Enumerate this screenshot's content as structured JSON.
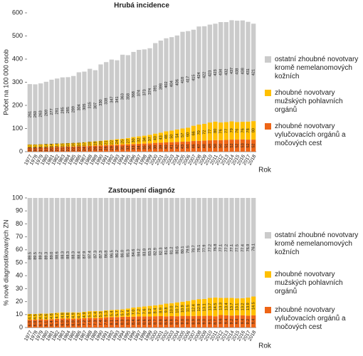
{
  "chart_data": [
    {
      "type": "bar",
      "stacked": true,
      "title": "Hrubá incidence",
      "y_label": "Počet na 100 000 osob",
      "x_label": "Rok",
      "ylim": [
        0,
        600
      ],
      "yticks": [
        0,
        100,
        200,
        300,
        400,
        500,
        600
      ],
      "categories": [
        "1977",
        "1978",
        "1979",
        "1980",
        "1981",
        "1982",
        "1983",
        "1984",
        "1985",
        "1986",
        "1987",
        "1988",
        "1989",
        "1990",
        "1991",
        "1992",
        "1993",
        "1994",
        "1995",
        "1996",
        "1997",
        "1998",
        "1999",
        "2000",
        "2001",
        "2002",
        "2003",
        "2004",
        "2005",
        "2006",
        "2007",
        "2008",
        "2009",
        "2010",
        "2011",
        "2012",
        "2013",
        "2014",
        "2015",
        "2016",
        "2017",
        "2018"
      ],
      "series": [
        {
          "name": "zhoubné novotvary vylučovacích orgánů a močových cest",
          "color": "#ee6516",
          "values": [
            18,
            18,
            19,
            19,
            20,
            21,
            21,
            22,
            22,
            23,
            24,
            25,
            26,
            27,
            28,
            29,
            30,
            31,
            32,
            33,
            34,
            35,
            36,
            38,
            39,
            40,
            41,
            42,
            43,
            44,
            46,
            47,
            48,
            49,
            50,
            50,
            51,
            52,
            52,
            53,
            52,
            52
          ]
        },
        {
          "name": "zhoubné novotvary mužských pohlavních orgánů",
          "color": "#ffc000",
          "values": [
            13,
            13,
            13,
            14,
            14,
            14,
            15,
            15,
            16,
            16,
            17,
            18,
            19,
            20,
            21,
            22,
            24,
            25,
            27,
            30,
            32,
            34,
            37,
            40,
            43,
            48,
            50,
            54,
            57,
            60,
            66,
            70,
            72,
            77,
            80,
            76,
            77,
            79,
            76,
            76,
            78,
            80
          ]
        },
        {
          "name": "ostatní zhoubné novotvary kromě nemelanomových kožních",
          "color": "#cbcbcb",
          "values": [
            261,
            260,
            263,
            269,
            277,
            281,
            285,
            285,
            289,
            304,
            305,
            315,
            307,
            330,
            338,
            347,
            341,
            363,
            358,
            368,
            374,
            373,
            374,
            391,
            398,
            402,
            404,
            406,
            418,
            417,
            415,
            424,
            422,
            423,
            423,
            434,
            432,
            437,
            438,
            438,
            431,
            421
          ]
        }
      ]
    },
    {
      "type": "bar",
      "stacked": true,
      "title": "Zastoupení diagnóz",
      "y_label": "% nově diagnostikovaných ZN",
      "x_label": "Rok",
      "ylim": [
        0,
        100
      ],
      "yticks": [
        0,
        10,
        20,
        30,
        40,
        50,
        60,
        70,
        80,
        90,
        100
      ],
      "categories": [
        "1977",
        "1978",
        "1979",
        "1980",
        "1981",
        "1982",
        "1983",
        "1984",
        "1985",
        "1986",
        "1987",
        "1988",
        "1989",
        "1990",
        "1991",
        "1992",
        "1993",
        "1994",
        "1995",
        "1996",
        "1997",
        "1998",
        "1999",
        "2000",
        "2001",
        "2002",
        "2003",
        "2004",
        "2005",
        "2006",
        "2007",
        "2008",
        "2009",
        "2010",
        "2011",
        "2012",
        "2013",
        "2014",
        "2015",
        "2016",
        "2017",
        "2018"
      ],
      "series": [
        {
          "name": "zhoubné novotvary vylučovacích orgánů a močových cest",
          "color": "#ee6516",
          "values": [
            6.0,
            6.0,
            6.3,
            6.1,
            6.4,
            6.7,
            6.9,
            6.9,
            6.8,
            6.9,
            7.2,
            7.5,
            7.3,
            7.4,
            7.9,
            8.1,
            8.1,
            8.3,
            8.3,
            8.4,
            8.6,
            8.6,
            8.5,
            8.7,
            8.8,
            8.6,
            8.8,
            8.7,
            9.0,
            9.0,
            8.9,
            9.0,
            9.0,
            9.1,
            8.7,
            9.6,
            9.4,
            9.2,
            9.4,
            9.4,
            9.2,
            9.4
          ],
          "value_labels": [
            "6.0",
            "6.0",
            "6.3",
            "6.1",
            "6.4",
            "6.7",
            "6.9",
            "6.9",
            "6.8",
            "6.9",
            "7.2",
            "7.5",
            "7.3",
            "7.4",
            "7.9",
            "8.1",
            "8.1",
            "8.3",
            "8.3",
            "8.4",
            "8.6",
            "8.6",
            "8.5",
            "8.7",
            "8.8",
            "8.6",
            "8.8",
            "8.7",
            "9.0",
            "9.0",
            "8.9",
            "9.0",
            "9.0",
            "9.1",
            "8.7",
            "9.6",
            "9.4",
            "9.2",
            "9.4",
            "9.4",
            "9.2",
            "9.4"
          ]
        },
        {
          "name": "zhoubné novotvary mužských pohlavních orgánů",
          "color": "#ffc000",
          "values": [
            4.5,
            4.5,
            4.5,
            4.6,
            4.6,
            4.7,
            4.8,
            4.8,
            4.9,
            4.7,
            4.9,
            5.1,
            5.4,
            5.3,
            5.3,
            5.4,
            5.7,
            5.7,
            6.4,
            7.0,
            7.2,
            7.6,
            8.2,
            8.4,
            8.9,
            9.8,
            10.0,
            10.7,
            10.9,
            11.5,
            12.4,
            12.9,
            13.1,
            13.7,
            14.5,
            13.3,
            13.4,
            13.7,
            13.1,
            13.2,
            13.9,
            14.5
          ],
          "value_labels": [
            "4.5",
            "4.5",
            "4.5",
            "4.6",
            "4.6",
            "4.7",
            "4.8",
            "4.8",
            "4.9",
            "4.7",
            "4.9",
            "5.1",
            "5.4",
            "5.3",
            "5.3",
            "5.4",
            "5.7",
            "5.7",
            "6.4",
            "7.0",
            "7.2",
            "7.6",
            "8.2",
            "8.4",
            "8.9",
            "9.8",
            "10.0",
            "10.7",
            "10.9",
            "11.5",
            "12.4",
            "12.9",
            "13.1",
            "13.7",
            "14.5",
            "13.3",
            "13.4",
            "13.7",
            "13.1",
            "13.2",
            "13.9",
            "14.5"
          ]
        },
        {
          "name": "ostatní zhoubné novotvary kromě nemelanomových kožních",
          "color": "#cbcbcb",
          "values": [
            89.5,
            89.5,
            89.2,
            89.3,
            89.0,
            88.6,
            88.3,
            88.3,
            88.3,
            88.4,
            87.9,
            87.4,
            87.3,
            87.3,
            86.8,
            86.5,
            86.2,
            86.0,
            85.3,
            84.6,
            84.2,
            83.8,
            83.3,
            82.9,
            82.3,
            81.6,
            81.2,
            80.6,
            80.1,
            79.5,
            78.7,
            78.1,
            77.9,
            77.2,
            76.8,
            77.1,
            77.2,
            77.1,
            77.5,
            77.4,
            76.9,
            76.1
          ],
          "value_labels": [
            "89.5",
            "89.5",
            "89.2",
            "89.3",
            "89.0",
            "88.6",
            "88.3",
            "88.3",
            "88.3",
            "88.4",
            "87.9",
            "87.4",
            "87.3",
            "87.3",
            "86.8",
            "86.5",
            "86.2",
            "86.0",
            "85.3",
            "84.6",
            "84.2",
            "83.8",
            "83.3",
            "82.9",
            "82.3",
            "81.6",
            "81.2",
            "80.6",
            "80.1",
            "79.5",
            "78.7",
            "78.1",
            "77.9",
            "77.2",
            "76.8",
            "77.1",
            "77.2",
            "77.1",
            "77.5",
            "77.4",
            "76.9",
            "76.1"
          ]
        }
      ]
    }
  ]
}
